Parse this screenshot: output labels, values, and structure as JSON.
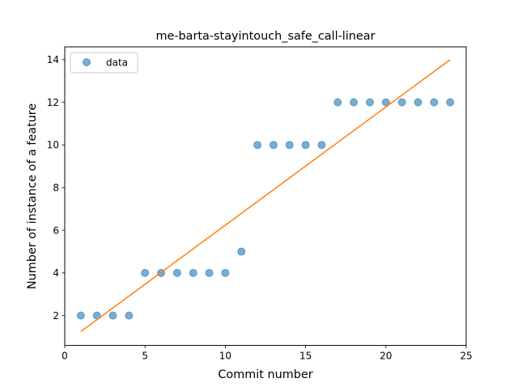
{
  "chart_data": {
    "type": "scatter",
    "title": "me-barta-stayintouch_safe_call-linear",
    "xlabel": "Commit number",
    "ylabel": "Number of instance of a feature",
    "xlim": [
      0,
      25
    ],
    "ylim": [
      0.6,
      14.6
    ],
    "xticks": [
      0,
      5,
      10,
      15,
      20,
      25
    ],
    "yticks": [
      2,
      4,
      6,
      8,
      10,
      12,
      14
    ],
    "legend": {
      "position": "top-left",
      "entries": [
        {
          "label": "data"
        }
      ]
    },
    "grid": false,
    "series": [
      {
        "name": "data",
        "type": "scatter",
        "color": "#1f77b4",
        "x": [
          1,
          2,
          3,
          4,
          5,
          6,
          7,
          8,
          9,
          10,
          11,
          12,
          13,
          14,
          15,
          16,
          17,
          18,
          19,
          20,
          21,
          22,
          23,
          24
        ],
        "y": [
          2,
          2,
          2,
          2,
          4,
          4,
          4,
          4,
          4,
          4,
          5,
          10,
          10,
          10,
          10,
          10,
          12,
          12,
          12,
          12,
          12,
          12,
          12,
          12
        ]
      },
      {
        "type": "line",
        "color": "#ff7f0e",
        "x": [
          1,
          24
        ],
        "y": [
          1.25,
          14.0
        ]
      }
    ]
  }
}
